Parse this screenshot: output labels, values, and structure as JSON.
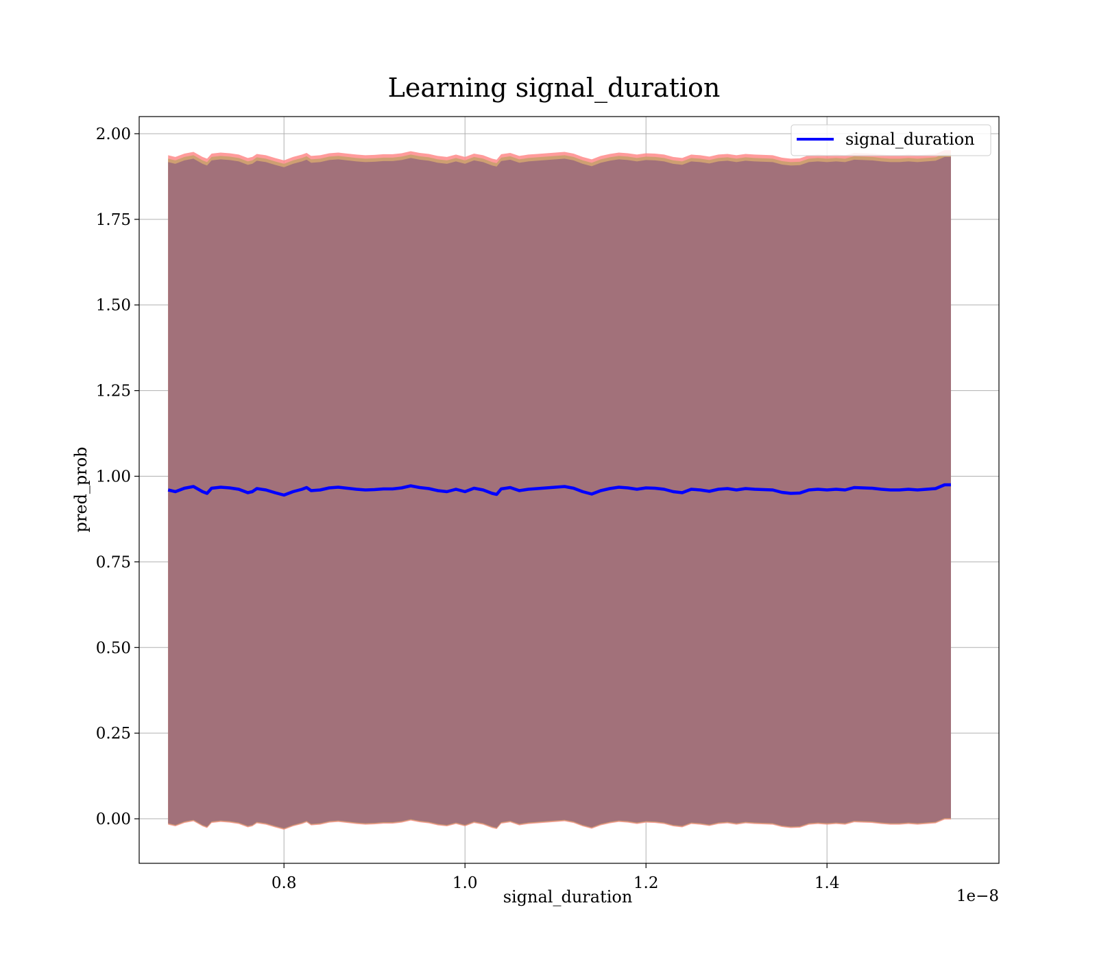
{
  "chart_data": {
    "type": "line",
    "title": "Learning signal_duration",
    "xlabel": "signal_duration",
    "ylabel": "pred_prob",
    "x_offset_text": "1e−8",
    "xlim": [
      0.64,
      1.59
    ],
    "ylim": [
      -0.13,
      2.05
    ],
    "x_range": [
      0.672,
      1.537
    ],
    "x_ticks": [
      0.8,
      1.0,
      1.2,
      1.4
    ],
    "x_tick_labels": [
      "0.8",
      "1.0",
      "1.2",
      "1.4"
    ],
    "y_ticks": [
      0.0,
      0.25,
      0.5,
      0.75,
      1.0,
      1.25,
      1.5,
      1.75,
      2.0
    ],
    "y_tick_labels": [
      "0.00",
      "0.25",
      "0.50",
      "0.75",
      "1.00",
      "1.25",
      "1.50",
      "1.75",
      "2.00"
    ],
    "grid": true,
    "legend": {
      "placement": "top-right"
    },
    "series": [
      {
        "name": "signal_duration",
        "color": "#0000ff",
        "x": [
          0.672,
          0.68,
          0.69,
          0.7,
          0.71,
          0.715,
          0.72,
          0.73,
          0.74,
          0.75,
          0.76,
          0.765,
          0.77,
          0.78,
          0.79,
          0.8,
          0.81,
          0.82,
          0.825,
          0.83,
          0.84,
          0.85,
          0.86,
          0.87,
          0.88,
          0.89,
          0.9,
          0.91,
          0.92,
          0.93,
          0.94,
          0.95,
          0.96,
          0.97,
          0.98,
          0.99,
          1.0,
          1.01,
          1.02,
          1.03,
          1.035,
          1.04,
          1.05,
          1.06,
          1.07,
          1.08,
          1.09,
          1.1,
          1.11,
          1.12,
          1.13,
          1.14,
          1.15,
          1.16,
          1.17,
          1.18,
          1.19,
          1.2,
          1.21,
          1.22,
          1.23,
          1.24,
          1.25,
          1.26,
          1.27,
          1.28,
          1.29,
          1.3,
          1.31,
          1.32,
          1.33,
          1.34,
          1.35,
          1.36,
          1.37,
          1.38,
          1.39,
          1.4,
          1.41,
          1.42,
          1.43,
          1.44,
          1.45,
          1.46,
          1.47,
          1.48,
          1.49,
          1.5,
          1.51,
          1.52,
          1.53,
          1.537
        ],
        "y": [
          0.96,
          0.955,
          0.965,
          0.97,
          0.955,
          0.95,
          0.965,
          0.968,
          0.966,
          0.962,
          0.952,
          0.955,
          0.964,
          0.96,
          0.952,
          0.945,
          0.955,
          0.962,
          0.967,
          0.958,
          0.96,
          0.966,
          0.968,
          0.965,
          0.962,
          0.96,
          0.961,
          0.963,
          0.963,
          0.966,
          0.972,
          0.967,
          0.964,
          0.958,
          0.955,
          0.962,
          0.955,
          0.965,
          0.96,
          0.95,
          0.947,
          0.963,
          0.967,
          0.958,
          0.962,
          0.964,
          0.966,
          0.968,
          0.97,
          0.965,
          0.955,
          0.948,
          0.958,
          0.964,
          0.968,
          0.966,
          0.962,
          0.966,
          0.965,
          0.962,
          0.955,
          0.952,
          0.962,
          0.96,
          0.956,
          0.962,
          0.964,
          0.96,
          0.964,
          0.962,
          0.961,
          0.96,
          0.953,
          0.95,
          0.951,
          0.96,
          0.962,
          0.96,
          0.962,
          0.96,
          0.967,
          0.966,
          0.965,
          0.962,
          0.96,
          0.96,
          0.962,
          0.96,
          0.962,
          0.964,
          0.975,
          0.975
        ],
        "band_halfwidth": 0.965,
        "band_colors": {
          "outer": "#ff8a8a",
          "mid": "#c9a06e",
          "inner": "#a2717a"
        }
      }
    ]
  }
}
